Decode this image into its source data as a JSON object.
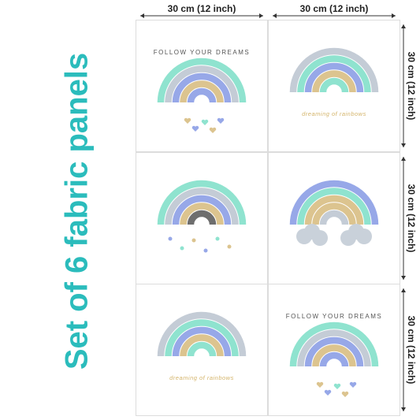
{
  "title": "Set of 6 fabric panels",
  "dimensions": {
    "top": [
      "30 cm (12 inch)",
      "30 cm (12 inch)"
    ],
    "right": [
      "30 cm (12 inch)",
      "30 cm (12 inch)",
      "30 cm (12 inch)"
    ]
  },
  "captions": [
    "FOLLOW YOUR DREAMS",
    "dreaming of rainbows",
    "dreaming of rainbows",
    "FOLLOW YOUR DREAMS"
  ]
}
